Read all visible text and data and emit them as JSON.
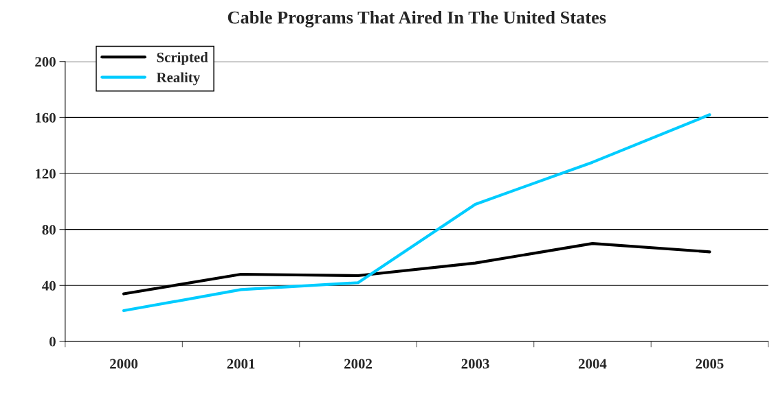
{
  "chart_data": {
    "type": "line",
    "title": "Cable Programs That Aired In The United States",
    "categories": [
      "2000",
      "2001",
      "2002",
      "2003",
      "2004",
      "2005"
    ],
    "series": [
      {
        "name": "Scripted",
        "color": "#000000",
        "values": [
          34,
          48,
          47,
          56,
          70,
          64
        ]
      },
      {
        "name": "Reality",
        "color": "#00ccff",
        "values": [
          22,
          37,
          42,
          98,
          128,
          162
        ]
      }
    ],
    "ylim": [
      0,
      200
    ],
    "yticks": [
      0,
      40,
      80,
      120,
      160,
      200
    ],
    "grid": "y",
    "legend": "top left",
    "marker": "none",
    "line_style": "solid"
  }
}
